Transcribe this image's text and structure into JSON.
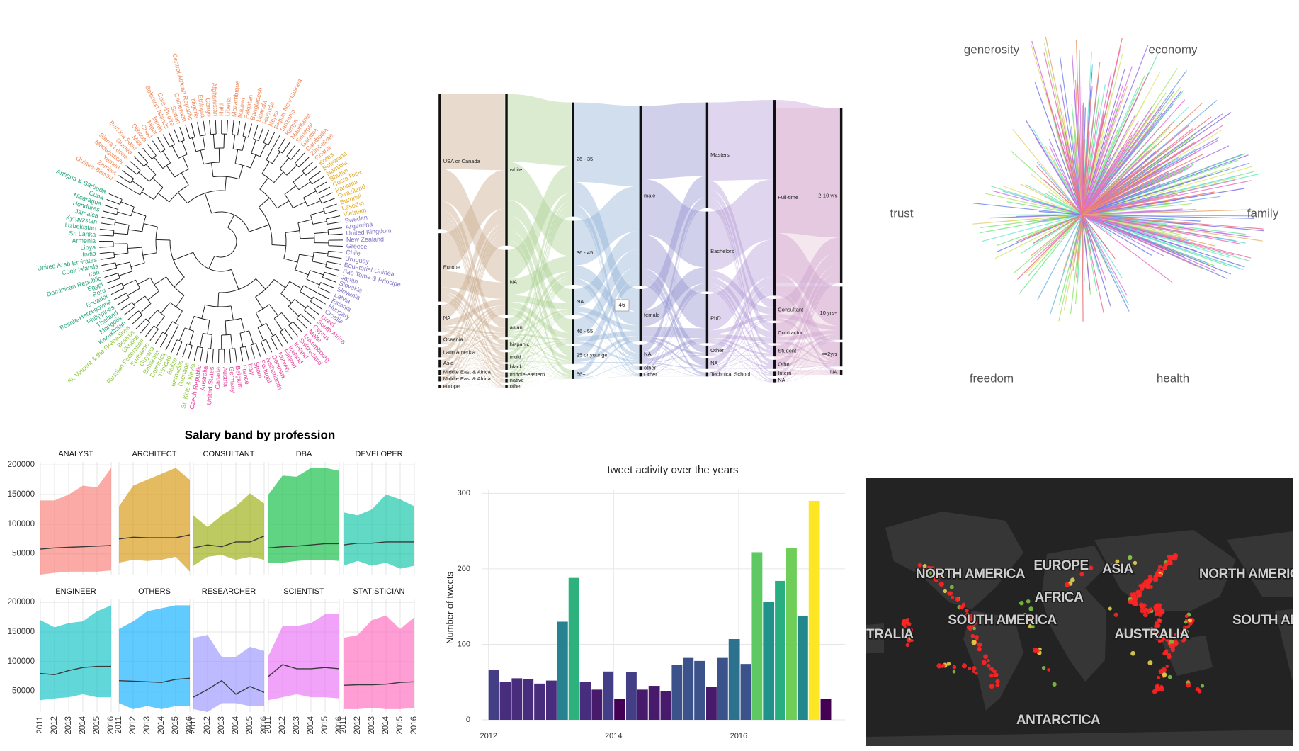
{
  "chart_data": [
    {
      "type": "dendrogram",
      "groups": [
        {
          "color": "#ee8b5d",
          "labels": [
            "Guinea-Bissau",
            "Zambia",
            "Yemen",
            "Madagascar",
            "Sierra Leone",
            "Guinea",
            "Burkina Faso",
            "Mali",
            "Djibouti",
            "Chad",
            "Niger",
            "Benin",
            "Solomon Islands",
            "Cote d'Ivoire",
            "Sudan",
            "Cameroon",
            "Central African Republic",
            "Nigeria",
            "Ethiopia",
            "Congo",
            "Afghanistan",
            "Haiti",
            "Liberia",
            "Mozambique",
            "Malawi",
            "Pakistan",
            "Bangladesh",
            "Uganda",
            "Rwanda",
            "Nepal",
            "Papua New Guinea",
            "Tanzania",
            "Kenya",
            "Mauritania",
            "Senegal",
            "Gambia",
            "Cambodia",
            "Zimbabwe",
            "Ghana"
          ]
        },
        {
          "color": "#e0a92a",
          "labels": [
            "Korea",
            "Botswana",
            "Namibia",
            "Bhutan",
            "Costa Rica",
            "Panama",
            "Swaziland",
            "Burundi",
            "Lesotho",
            "Vietnam"
          ]
        },
        {
          "color": "#7e72c4",
          "labels": [
            "Sweden",
            "Argentina",
            "United Kingdom",
            "New Zealand",
            "Greece",
            "Chile",
            "Uruguay",
            "Equatorial Guinea",
            "Sao Tome & Principe",
            "Japan",
            "Slovakia",
            "Slovenia",
            "Latvia",
            "Estonia",
            "Hungary",
            "Croatia"
          ]
        },
        {
          "color": "#e7439a",
          "labels": [
            "Israel",
            "South Africa",
            "Cyprus",
            "Malta",
            "Luxembourg",
            "Switzerland",
            "Ireland",
            "Iceland",
            "Finland",
            "Norway",
            "Denmark",
            "Netherlands",
            "Portugal",
            "Spain",
            "Italy",
            "France",
            "Belgium",
            "Germany",
            "Austria",
            "Canada",
            "United States",
            "Australia",
            "Czech Republic"
          ]
        },
        {
          "color": "#8dc63f",
          "labels": [
            "St. Kitts & Nevis",
            "Grenada",
            "Barbados",
            "Belize",
            "Trinidad",
            "Dominica",
            "Bahamas",
            "Guyana",
            "Suriname",
            "Russian Federation",
            "Ukraine",
            "Belarus",
            "St. Vincent & the Grenadines"
          ]
        },
        {
          "color": "#2aa57a",
          "labels": [
            "Kazakhstan",
            "Mongolia",
            "Thailand",
            "Philippines",
            "Bosnia-Herzegovina",
            "Ecuador",
            "Peru",
            "Egypt",
            "Dominican Republic",
            "Iran",
            "Cook Islands",
            "United Arab Emirates",
            "India",
            "Libya",
            "Armenia",
            "Sri Lanka",
            "Uzbekistan",
            "Kyrgyzstan",
            "Jamaica",
            "Honduras",
            "Nicaragua",
            "Cuba",
            "Antigua & Barbuda"
          ]
        }
      ]
    },
    {
      "type": "sankey",
      "colors": [
        "#c9a98a",
        "#a9cf8f",
        "#8fb1d6",
        "#8f8fcf",
        "#b39bd6",
        "#c9a0d4",
        "#d9a0bc"
      ],
      "columns": [
        [
          "USA or Canada",
          "Europe",
          "NA",
          "Oceania",
          "Latin America",
          "Asia",
          "Middle East & Africa",
          "Middle East & Africa",
          "europe"
        ],
        [
          "white",
          "NA",
          "asian",
          "hispanic",
          "multi",
          "black",
          "middle-eastern",
          "native",
          "other"
        ],
        [
          "26 - 35",
          "36 - 45",
          "NA",
          "46 - 55",
          "25 or younger",
          "56+"
        ],
        [
          "male",
          "female",
          "NA",
          "other",
          "Other"
        ],
        [
          "Masters",
          "Bachelors",
          "PhD",
          "Other",
          "NA",
          "Technical School"
        ],
        [
          "Full-time",
          "Consultant",
          "Contractor",
          "Student",
          "Other",
          "Intern",
          "NA"
        ],
        [
          "2-10 yrs",
          "10 yrs+",
          "<=2yrs",
          "NA"
        ]
      ],
      "tooltip": "46"
    },
    {
      "type": "radial",
      "labels": [
        "generosity",
        "economy",
        "trust",
        "family",
        "freedom",
        "health"
      ]
    },
    {
      "type": "area",
      "title": "Salary band by profession",
      "x": [
        2011,
        2012,
        2013,
        2014,
        2015,
        2016
      ],
      "xlim": [
        2011,
        2016
      ],
      "xticks": [
        2011,
        2012,
        2013,
        2014,
        2015,
        2016
      ],
      "ylim": [
        15000,
        205000
      ],
      "yticks": [
        50000,
        100000,
        150000,
        200000
      ],
      "grid": true,
      "panels": [
        {
          "title": "ANALYST",
          "color": "#f8766d",
          "high": [
            140000,
            140000,
            150000,
            165000,
            162000,
            195000
          ],
          "low": [
            15000,
            18000,
            20000,
            20000,
            20000,
            22000
          ],
          "mid": [
            58000,
            60000,
            61000,
            62000,
            63000,
            64000
          ]
        },
        {
          "title": "ARCHITECT",
          "color": "#d39200",
          "high": [
            130000,
            165000,
            175000,
            185000,
            195000,
            175000
          ],
          "low": [
            35000,
            40000,
            38000,
            40000,
            45000,
            20000
          ],
          "mid": [
            75000,
            78000,
            77000,
            77000,
            77000,
            82000
          ]
        },
        {
          "title": "CONSULTANT",
          "color": "#93aa00",
          "high": [
            115000,
            95000,
            115000,
            130000,
            152000,
            135000
          ],
          "low": [
            30000,
            45000,
            48000,
            40000,
            45000,
            40000
          ],
          "mid": [
            60000,
            65000,
            62000,
            70000,
            70000,
            80000
          ]
        },
        {
          "title": "DBA",
          "color": "#00ba38",
          "high": [
            150000,
            182000,
            180000,
            195000,
            195000,
            190000
          ],
          "low": [
            35000,
            35000,
            38000,
            40000,
            40000,
            38000
          ],
          "mid": [
            60000,
            62000,
            63000,
            65000,
            67000,
            67000
          ]
        },
        {
          "title": "DEVELOPER",
          "color": "#00c19f",
          "high": [
            120000,
            115000,
            125000,
            150000,
            142000,
            130000
          ],
          "low": [
            30000,
            38000,
            30000,
            35000,
            25000,
            30000
          ],
          "mid": [
            65000,
            68000,
            68000,
            70000,
            70000,
            70000
          ]
        },
        {
          "title": "ENGINEER",
          "color": "#00bfc4",
          "high": [
            170000,
            158000,
            165000,
            168000,
            185000,
            195000
          ],
          "low": [
            35000,
            38000,
            40000,
            45000,
            40000,
            40000
          ],
          "mid": [
            80000,
            78000,
            85000,
            90000,
            92000,
            92000
          ]
        },
        {
          "title": "OTHERS",
          "color": "#00a9ff",
          "high": [
            155000,
            168000,
            185000,
            190000,
            195000,
            195000
          ],
          "low": [
            30000,
            20000,
            25000,
            20000,
            25000,
            25000
          ],
          "mid": [
            68000,
            67000,
            66000,
            65000,
            70000,
            72000
          ]
        },
        {
          "title": "RESEARCHER",
          "color": "#9590ff",
          "high": [
            140000,
            145000,
            108000,
            108000,
            125000,
            118000
          ],
          "low": [
            20000,
            15000,
            30000,
            30000,
            25000,
            25000
          ],
          "mid": [
            40000,
            53000,
            68000,
            45000,
            58000,
            48000
          ]
        },
        {
          "title": "SCIENTIST",
          "color": "#e76bf3",
          "high": [
            110000,
            160000,
            160000,
            165000,
            180000,
            180000
          ],
          "low": [
            35000,
            40000,
            45000,
            40000,
            40000,
            38000
          ],
          "mid": [
            75000,
            95000,
            88000,
            88000,
            90000,
            88000
          ]
        },
        {
          "title": "STATISTICIAN",
          "color": "#ff62bc",
          "high": [
            140000,
            145000,
            170000,
            178000,
            155000,
            175000
          ],
          "low": [
            20000,
            20000,
            22000,
            20000,
            20000,
            22000
          ],
          "mid": [
            60000,
            61000,
            61000,
            62000,
            65000,
            66000
          ]
        }
      ]
    },
    {
      "type": "histogram",
      "title": "tweet activity over the years",
      "y_label": "Number of tweets",
      "bins": [
        2012.0,
        2012.18,
        2012.37,
        2012.55,
        2012.73,
        2012.92,
        2013.1,
        2013.28,
        2013.46,
        2013.65,
        2013.83,
        2014.01,
        2014.2,
        2014.38,
        2014.56,
        2014.75,
        2014.93,
        2015.11,
        2015.29,
        2015.48,
        2015.66,
        2015.84,
        2016.03,
        2016.21,
        2016.39,
        2016.58,
        2016.76,
        2016.94,
        2017.12,
        2017.31,
        2017.49
      ],
      "values": [
        66,
        50,
        55,
        54,
        48,
        52,
        130,
        188,
        50,
        40,
        64,
        28,
        63,
        40,
        45,
        38,
        73,
        82,
        78,
        44,
        82,
        107,
        74,
        222,
        156,
        184,
        228,
        138,
        290,
        28
      ],
      "colors": [
        "#433e85",
        "#472d7b",
        "#472d7b",
        "#472d7b",
        "#472d7b",
        "#472d7b",
        "#26828e",
        "#2db27d",
        "#472d7b",
        "#481a6c",
        "#433e85",
        "#440154",
        "#433e85",
        "#481a6c",
        "#481a6c",
        "#481a6c",
        "#3b528b",
        "#3b528b",
        "#3b528b",
        "#481a6c",
        "#3b528b",
        "#2c728e",
        "#3b528b",
        "#5ec962",
        "#21918c",
        "#28ae80",
        "#6ece58",
        "#23888e",
        "#fde725",
        "#440154"
      ],
      "xlim": [
        2011.89,
        2017.7
      ],
      "xticks": [
        2012,
        2014,
        2016
      ],
      "ylim": [
        0,
        305
      ],
      "yticks": [
        0,
        100,
        200,
        300
      ],
      "grid": true
    },
    {
      "type": "map",
      "labels": [
        "NORTH AMERICA",
        "EUROPE",
        "ASIA",
        "NORTH AMERIC",
        "AFRICA",
        "SOUTH AMERICA",
        "SOUTH AM",
        "TRALIA",
        "AUSTRALIA",
        "ANTARCTICA"
      ]
    }
  ]
}
